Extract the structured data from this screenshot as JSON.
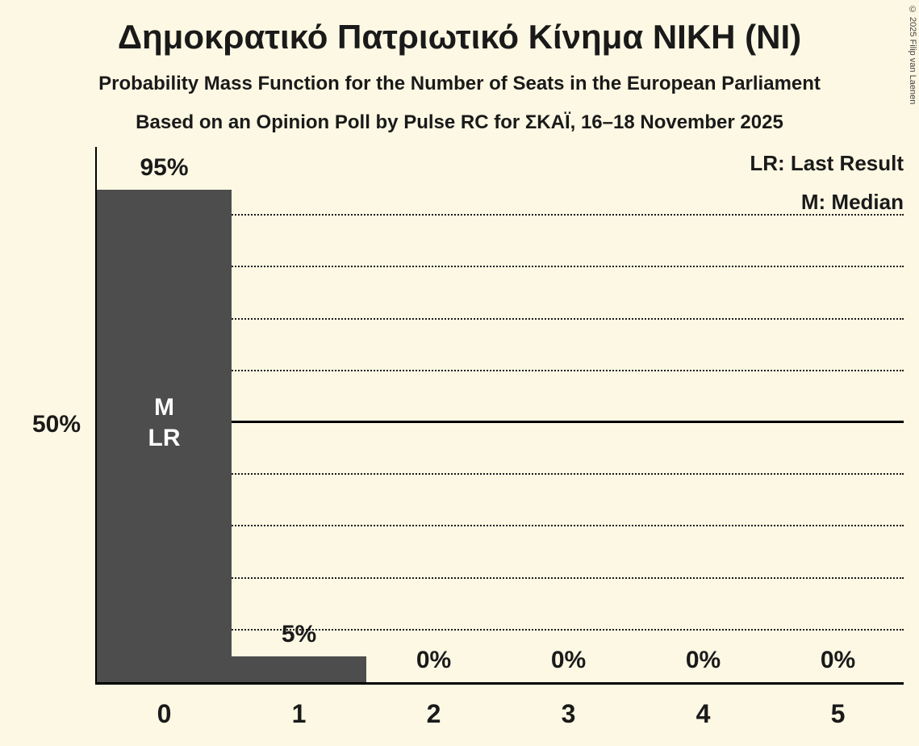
{
  "title": "Δημοκρατικό Πατριωτικό Κίνημα ΝΙΚΗ (ΝΙ)",
  "subtitle": "Probability Mass Function for the Number of Seats in the European Parliament",
  "source_line": "Based on an Opinion Poll by Pulse RC for ΣΚΑΪ, 16–18 November 2025",
  "copyright": "© 2025 Filip van Laenen",
  "legend": {
    "last_result": "LR: Last Result",
    "median": "M: Median"
  },
  "y_axis": {
    "label": "50%",
    "label_percent": 50
  },
  "chart_data": {
    "type": "bar",
    "title": "Δημοκρατικό Πατριωτικό Κίνημα ΝΙΚΗ (ΝΙ)",
    "categories": [
      "0",
      "1",
      "2",
      "3",
      "4",
      "5"
    ],
    "values": [
      95,
      5,
      0,
      0,
      0,
      0
    ],
    "value_labels": [
      "95%",
      "5%",
      "0%",
      "0%",
      "0%",
      "0%"
    ],
    "xlabel": "",
    "ylabel": "",
    "ylim": [
      0,
      100
    ],
    "grid": "horizontal",
    "gridlines": {
      "start": 10,
      "end": 90,
      "step": 10,
      "solid_at": 50
    },
    "annotations": [
      {
        "category_index": 0,
        "lines": [
          "M",
          "LR"
        ],
        "anchor_percent": 50
      }
    ],
    "legend_position": "top-right",
    "colors": {
      "bar": "#4d4d4d",
      "background": "#fcf8e3",
      "text": "#1a1a1a",
      "bar_label": "#ffffff"
    }
  }
}
